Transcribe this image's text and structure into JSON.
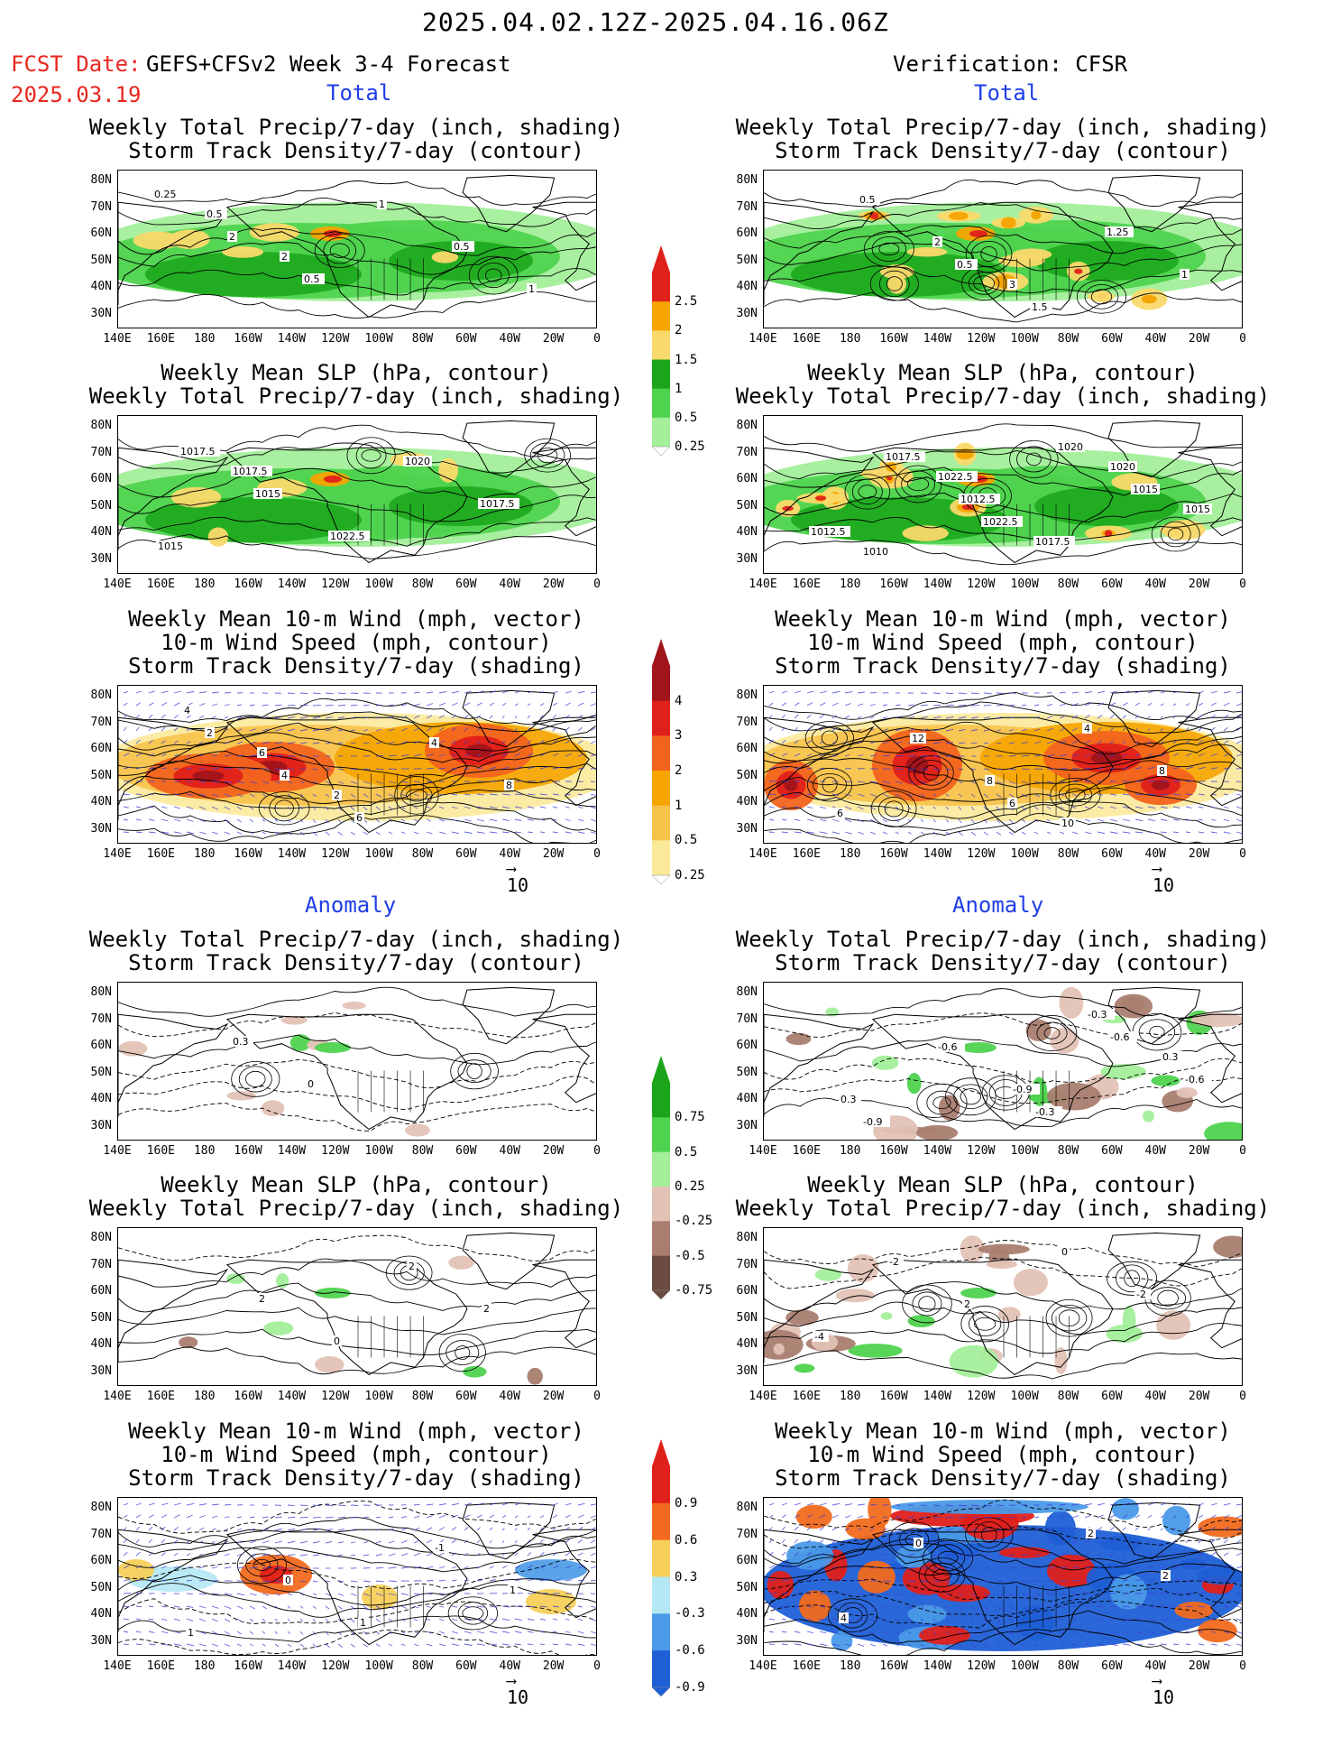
{
  "header": {
    "title": "2025.04.02.12Z-2025.04.16.06Z",
    "fcst_label": "FCST Date:",
    "fcst_model": "GEFS+CFSv2 Week 3-4 Forecast",
    "fcst_date": "2025.03.19",
    "verification": "Verification: CFSR",
    "total_label": "Total",
    "anomaly_label": "Anomaly"
  },
  "panel_titles": {
    "precip_storm": [
      "Weekly Total Precip/7-day (inch, shading)",
      "Storm Track Density/7-day (contour)"
    ],
    "slp_precip": [
      "Weekly Mean SLP (hPa, contour)",
      "Weekly Total Precip/7-day (inch, shading)"
    ],
    "wind_storm": [
      "Weekly Mean 10-m Wind (mph, vector)",
      "10-m Wind Speed (mph, contour)",
      "Storm Track Density/7-day (shading)"
    ]
  },
  "axes": {
    "lat_ticks": [
      "80N",
      "70N",
      "60N",
      "50N",
      "40N",
      "30N"
    ],
    "lon_ticks": [
      "140E",
      "160E",
      "180",
      "160W",
      "140W",
      "120W",
      "100W",
      "80W",
      "60W",
      "40W",
      "20W",
      "0"
    ]
  },
  "vector_ref": "10",
  "colorbars": {
    "precip_total": {
      "labels": [
        "2.5",
        "2",
        "1.5",
        "1",
        "0.5",
        "0.25"
      ],
      "colors": [
        "#e0201a",
        "#f5a400",
        "#fad96b",
        "#1aa51a",
        "#4fd34f",
        "#a3ef9a"
      ]
    },
    "storm_total": {
      "labels": [
        "4",
        "3",
        "2",
        "1",
        "0.5",
        "0.25"
      ],
      "colors": [
        "#a1141a",
        "#e0201a",
        "#f2641e",
        "#f5a400",
        "#f7c24a",
        "#fbe99a"
      ]
    },
    "precip_anom": {
      "labels": [
        "0.75",
        "0.5",
        "0.25",
        "-0.25",
        "-0.5",
        "-0.75"
      ],
      "colors": [
        "#1aa51a",
        "#4fd34f",
        "#a3ef9a",
        "#e3c2b6",
        "#a97e70",
        "#6b4a3f"
      ]
    },
    "storm_anom": {
      "labels": [
        "0.9",
        "0.6",
        "0.3",
        "-0.3",
        "-0.6",
        "-0.9"
      ],
      "colors": [
        "#e0201a",
        "#f26a1e",
        "#f7d05a",
        "#b4e8f5",
        "#4a9ae8",
        "#1f5fd6"
      ]
    }
  },
  "chart_data": [
    {
      "type": "heatmap",
      "panel": "fcst-total-precip-storm",
      "title": "Weekly Total Precip/7-day (inch, shading) / Storm Track Density/7-day (contour)",
      "contour_labels": [
        "0.25",
        "2",
        "0.5",
        "1",
        "0.5",
        "1",
        "0.5",
        "2"
      ]
    },
    {
      "type": "heatmap",
      "panel": "fcst-total-slp-precip",
      "title": "Weekly Mean SLP (hPa, contour) / Weekly Total Precip/7-day (inch, shading)",
      "contour_labels": [
        "1017.5",
        "1015",
        "1022.5",
        "1020",
        "1017.5",
        "1015",
        "1017.5"
      ]
    },
    {
      "type": "heatmap",
      "panel": "fcst-total-wind-storm",
      "title": "Weekly Mean 10-m Wind (mph, vector) / 10-m Wind Speed (mph, contour) / Storm Track Density/7-day (shading)",
      "contour_labels": [
        "2",
        "4",
        "6",
        "4",
        "8",
        "4",
        "6",
        "2"
      ]
    },
    {
      "type": "heatmap",
      "panel": "fcst-anom-precip-storm",
      "title": "Weekly Total Precip/7-day (inch, shading) / Storm Track Density/7-day (contour)",
      "contour_labels": [
        "0.3",
        "0"
      ]
    },
    {
      "type": "heatmap",
      "panel": "fcst-anom-slp-precip",
      "title": "Weekly Mean SLP (hPa, contour) / Weekly Total Precip/7-day (inch, shading)",
      "contour_labels": [
        "2",
        "0",
        "2",
        "2"
      ]
    },
    {
      "type": "heatmap",
      "panel": "fcst-anom-wind-storm",
      "title": "Weekly Mean 10-m Wind (mph, vector) / 10-m Wind Speed (mph, contour) / Storm Track Density/7-day (shading)",
      "contour_labels": [
        "0",
        "1",
        "-1",
        "1",
        "1"
      ]
    },
    {
      "type": "heatmap",
      "panel": "verif-total-precip-storm",
      "title": "Weekly Total Precip/7-day (inch, shading) / Storm Track Density/7-day (contour)",
      "contour_labels": [
        "0.5",
        "1.5",
        "1.25",
        "1",
        "0.5",
        "2",
        "3"
      ]
    },
    {
      "type": "heatmap",
      "panel": "verif-total-slp-precip",
      "title": "Weekly Mean SLP (hPa, contour) / Weekly Total Precip/7-day (inch, shading)",
      "contour_labels": [
        "1022.5",
        "1020",
        "1015",
        "1012.5",
        "1017.5",
        "1012.5",
        "1017.5",
        "1020",
        "1015",
        "1010",
        "1022.5"
      ]
    },
    {
      "type": "heatmap",
      "panel": "verif-total-wind-storm",
      "title": "Weekly Mean 10-m Wind (mph, vector) / 10-m Wind Speed (mph, contour) / Storm Track Density/7-day (shading)",
      "contour_labels": [
        "6",
        "4",
        "8",
        "6",
        "12",
        "8",
        "10"
      ]
    },
    {
      "type": "heatmap",
      "panel": "verif-anom-precip-storm",
      "title": "Weekly Total Precip/7-day (inch, shading) / Storm Track Density/7-day (contour)",
      "contour_labels": [
        "-0.3",
        "-0.6",
        "-0.6",
        "-0.9",
        "-0.6",
        "-0.9",
        "-0.3",
        "0.3",
        "0.3"
      ]
    },
    {
      "type": "heatmap",
      "panel": "verif-anom-slp-precip",
      "title": "Weekly Mean SLP (hPa, contour) / Weekly Total Precip/7-day (inch, shading)",
      "contour_labels": [
        "0",
        "-2",
        "-4",
        "-2",
        "2"
      ]
    },
    {
      "type": "heatmap",
      "panel": "verif-anom-wind-storm",
      "title": "Weekly Mean 10-m Wind (mph, vector) / 10-m Wind Speed (mph, contour) / Storm Track Density/7-day (shading)",
      "contour_labels": [
        "2",
        "2",
        "4",
        "0"
      ]
    }
  ]
}
